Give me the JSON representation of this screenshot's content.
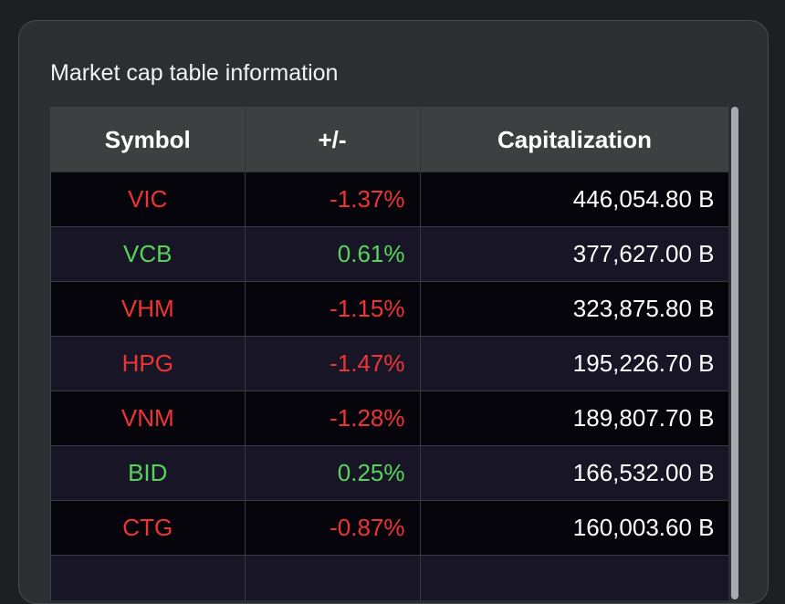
{
  "card": {
    "title": "Market cap table information"
  },
  "table": {
    "headers": [
      "Symbol",
      "+/-",
      "Capitalization"
    ],
    "rows": [
      {
        "symbol": "VIC",
        "change": "-1.37%",
        "cap": "446,054.80 B",
        "direction": "down"
      },
      {
        "symbol": "VCB",
        "change": "0.61%",
        "cap": "377,627.00 B",
        "direction": "up"
      },
      {
        "symbol": "VHM",
        "change": "-1.15%",
        "cap": "323,875.80 B",
        "direction": "down"
      },
      {
        "symbol": "HPG",
        "change": "-1.47%",
        "cap": "195,226.70 B",
        "direction": "down"
      },
      {
        "symbol": "VNM",
        "change": "-1.28%",
        "cap": "189,807.70 B",
        "direction": "down"
      },
      {
        "symbol": "BID",
        "change": "0.25%",
        "cap": "166,532.00 B",
        "direction": "up"
      },
      {
        "symbol": "CTG",
        "change": "-0.87%",
        "cap": "160,003.60 B",
        "direction": "down"
      }
    ]
  },
  "colors": {
    "down": "#ee3434",
    "up": "#55d65a",
    "header_bg": "#3e3f41",
    "row_odd": "#05050b",
    "row_even": "#181626"
  }
}
